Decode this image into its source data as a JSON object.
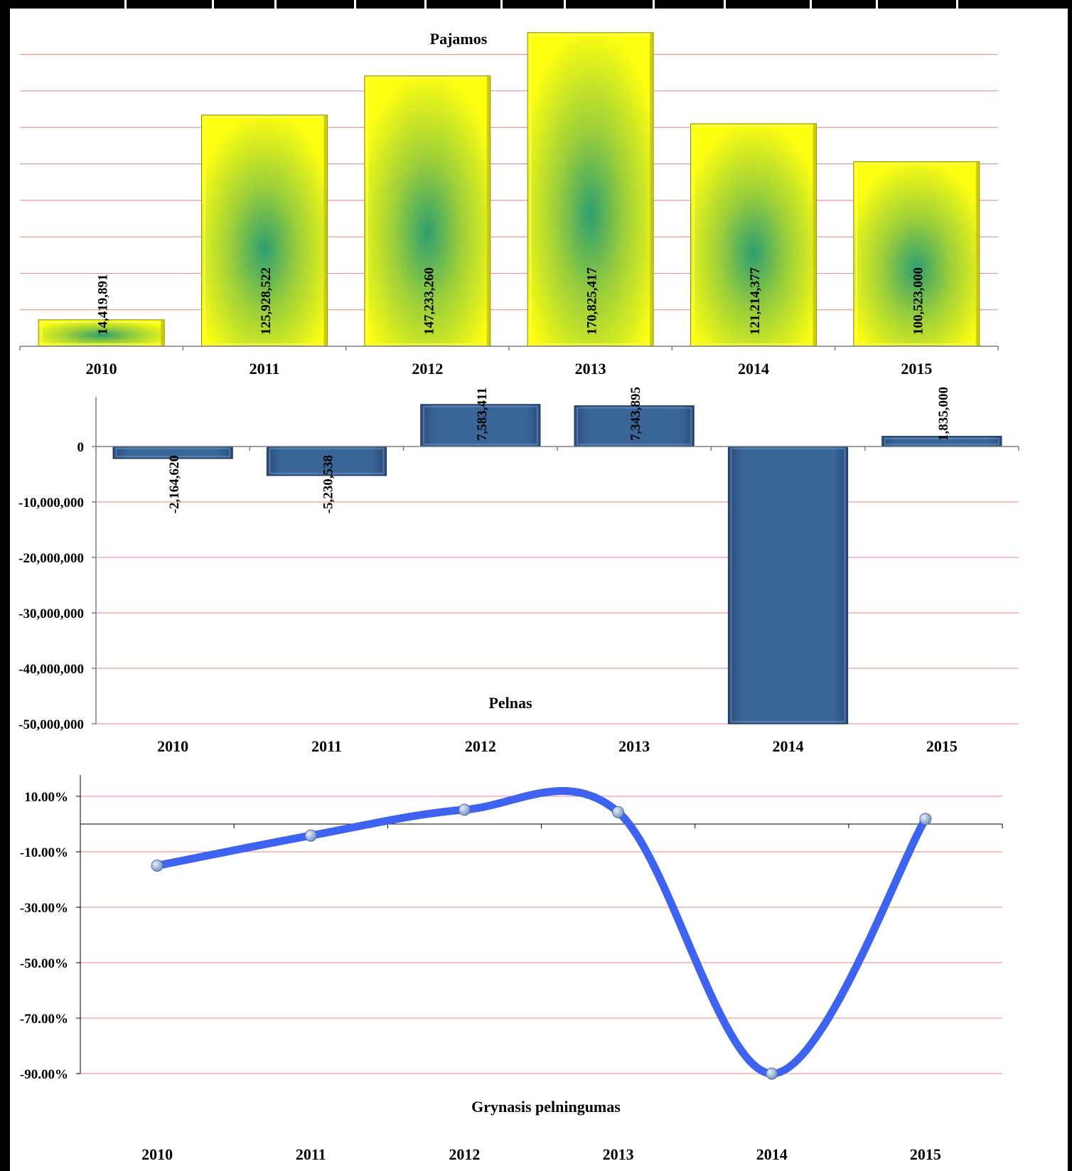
{
  "chart_data": [
    {
      "type": "bar",
      "title": "Pajamos",
      "categories": [
        "2010",
        "2011",
        "2012",
        "2013",
        "2014",
        "2015"
      ],
      "values": [
        14419891,
        125928522,
        147233260,
        170825417,
        121214377,
        100523000
      ],
      "data_labels": [
        "14,419,891",
        "125,928,522",
        "147,233,260",
        "170,825,417",
        "121,214,377",
        "100,523,000"
      ],
      "ylim": [
        0,
        170000000
      ],
      "y_axis_visible": false,
      "grid": true,
      "colors": {
        "bar_edge": "#ffff00",
        "bar_center": "#2e9e70",
        "grid": "#f08080"
      }
    },
    {
      "type": "bar",
      "title": "Pelnas",
      "categories": [
        "2010",
        "2011",
        "2012",
        "2013",
        "2014",
        "2015"
      ],
      "values": [
        -2164620,
        -5230538,
        7583411,
        7343895,
        -50000000,
        1835000
      ],
      "data_labels": [
        "-2,164,620",
        "-5,230,538",
        "7,583,411",
        "7,343,895",
        "",
        "1,835,000"
      ],
      "ylim": [
        -50000000,
        9000000
      ],
      "yticks": [
        "0",
        "-10,000,000",
        "-20,000,000",
        "-30,000,000",
        "-40,000,000",
        "-50,000,000"
      ],
      "ytick_values": [
        0,
        -10000000,
        -20000000,
        -30000000,
        -40000000,
        -50000000
      ],
      "grid": true,
      "colors": {
        "bar": "#3a6597",
        "bar_dark": "#243f63",
        "grid": "#f08080"
      }
    },
    {
      "type": "line",
      "title": "Grynasis pelningumas",
      "categories": [
        "2010",
        "2011",
        "2012",
        "2013",
        "2014",
        "2015"
      ],
      "values": [
        -15.0,
        -4.15,
        5.15,
        4.3,
        -90.0,
        1.83
      ],
      "ylim": [
        -90,
        18
      ],
      "yticks": [
        "10.00%",
        "-10.00%",
        "-30.00%",
        "-50.00%",
        "-70.00%",
        "-90.00%"
      ],
      "ytick_values": [
        10,
        -10,
        -30,
        -50,
        -70,
        -90
      ],
      "smooth": true,
      "grid": true,
      "colors": {
        "line": "#3d63f0",
        "marker": "#8eaedd",
        "grid": "#f08080"
      }
    }
  ]
}
